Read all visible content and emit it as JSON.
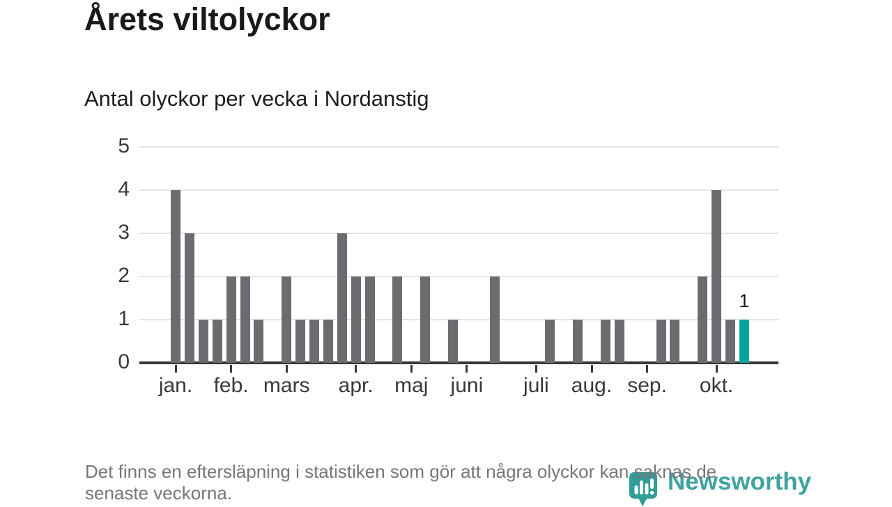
{
  "chart_data": {
    "type": "bar",
    "title": "Årets viltolyckor",
    "subtitle": "Antal olyckor per vecka i Nordanstig",
    "x_unit": "week",
    "values": [
      4,
      3,
      1,
      1,
      2,
      2,
      1,
      0,
      2,
      1,
      1,
      1,
      3,
      2,
      2,
      0,
      2,
      0,
      2,
      0,
      1,
      0,
      0,
      2,
      0,
      0,
      0,
      1,
      0,
      1,
      0,
      1,
      1,
      0,
      0,
      1,
      1,
      0,
      2,
      4,
      1,
      1
    ],
    "highlight_index": 41,
    "highlight_label": "1",
    "y_ticks": [
      0,
      1,
      2,
      3,
      4,
      5
    ],
    "ylim": [
      0,
      5
    ],
    "month_ticks": [
      {
        "label": "jan.",
        "week": 0
      },
      {
        "label": "feb.",
        "week": 4
      },
      {
        "label": "mars",
        "week": 8
      },
      {
        "label": "apr.",
        "week": 13
      },
      {
        "label": "maj",
        "week": 17
      },
      {
        "label": "juni",
        "week": 21
      },
      {
        "label": "juli",
        "week": 26
      },
      {
        "label": "aug.",
        "week": 30
      },
      {
        "label": "sep.",
        "week": 34
      },
      {
        "label": "okt.",
        "week": 39
      }
    ],
    "colors": {
      "bar": "#6b6b70",
      "highlight": "#00a49d",
      "gridline": "#e4e4e4",
      "axis": "#37373c",
      "tick_label": "#3a3a3e"
    },
    "grid": true,
    "legend": false
  },
  "footer": {
    "note_line1": "Det finns en eftersläpning i statistiken som gör att några olyckor kan saknas de",
    "note_line2": "senaste veckorna.",
    "brand": "Newsworthy"
  }
}
